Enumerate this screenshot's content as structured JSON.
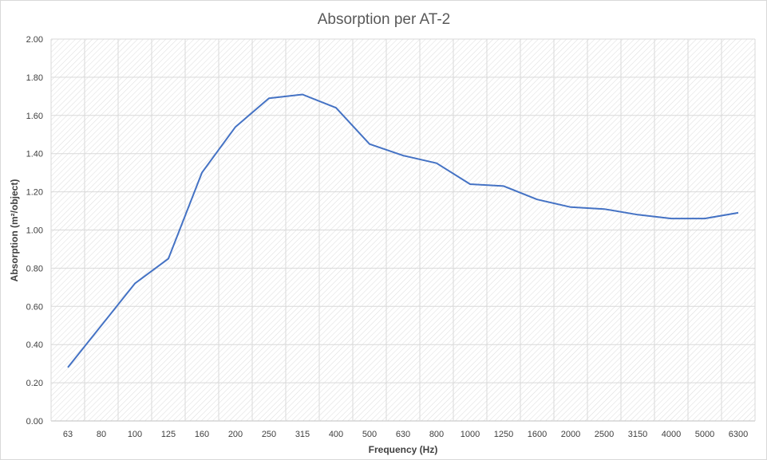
{
  "chart_data": {
    "type": "line",
    "title": "Absorption per AT-2",
    "xlabel": "Frequency (Hz)",
    "ylabel": "Absorption (m²/object)",
    "categories": [
      "63",
      "80",
      "100",
      "125",
      "160",
      "200",
      "250",
      "315",
      "400",
      "500",
      "630",
      "800",
      "1000",
      "1250",
      "1600",
      "2000",
      "2500",
      "3150",
      "4000",
      "5000",
      "6300"
    ],
    "series": [
      {
        "values": [
          0.28,
          0.5,
          0.72,
          0.85,
          1.3,
          1.54,
          1.69,
          1.71,
          1.64,
          1.45,
          1.39,
          1.35,
          1.24,
          1.23,
          1.16,
          1.12,
          1.11,
          1.08,
          1.06,
          1.06,
          1.09
        ],
        "color": "#4472c4"
      }
    ],
    "ylim": [
      0,
      2.0
    ],
    "yticks": [
      "0.00",
      "0.20",
      "0.40",
      "0.60",
      "0.80",
      "1.00",
      "1.20",
      "1.40",
      "1.60",
      "1.80",
      "2.00"
    ],
    "grid": true,
    "legend": "none"
  }
}
